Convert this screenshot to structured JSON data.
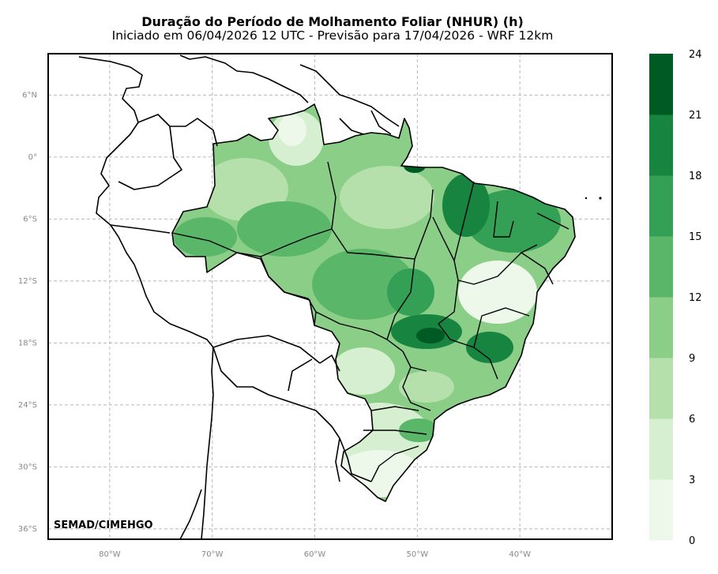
{
  "title": "Duração do Período de Molhamento Foliar (NHUR) (h)",
  "subtitle": "Iniciado em 06/04/2026 12 UTC - Previsão para 17/04/2026 - WRF 12km",
  "credit": "SEMAD/CIMEHGO",
  "map": {
    "lon_range": [
      -86,
      -31
    ],
    "lat_range": [
      -37,
      10
    ],
    "x_ticks": [
      {
        "lon": -80,
        "label": "80°W"
      },
      {
        "lon": -70,
        "label": "70°W"
      },
      {
        "lon": -60,
        "label": "60°W"
      },
      {
        "lon": -50,
        "label": "50°W"
      },
      {
        "lon": -40,
        "label": "40°W"
      }
    ],
    "y_ticks": [
      {
        "lat": 6,
        "label": "6°N"
      },
      {
        "lat": 0,
        "label": "0°"
      },
      {
        "lat": -6,
        "label": "6°S"
      },
      {
        "lat": -12,
        "label": "12°S"
      },
      {
        "lat": -18,
        "label": "18°S"
      },
      {
        "lat": -24,
        "label": "24°S"
      },
      {
        "lat": -30,
        "label": "30°S"
      },
      {
        "lat": -36,
        "label": "36°S"
      }
    ],
    "grid": "dashed gray"
  },
  "colorbar": {
    "ticks": [
      "0",
      "3",
      "6",
      "9",
      "12",
      "15",
      "18",
      "21",
      "24"
    ],
    "colors": [
      "#eef8ea",
      "#d6efd0",
      "#b5e0ab",
      "#8ace88",
      "#5ab769",
      "#34a055",
      "#17843f",
      "#005a24"
    ]
  },
  "palette": {
    "low": "#eef8ea",
    "mid": "#8ace88",
    "high": "#17843f",
    "max": "#005a24"
  }
}
